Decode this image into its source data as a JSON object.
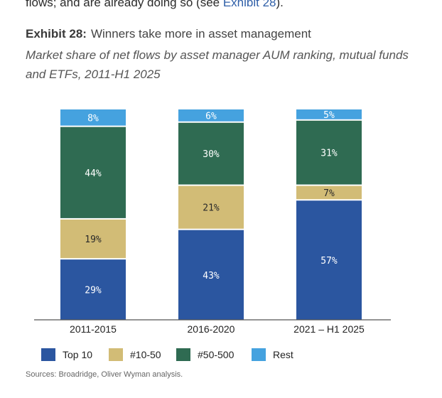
{
  "intro": {
    "text_before": "flows; and are already doing so (see ",
    "link": "Exhibit 28",
    "text_after": ")."
  },
  "exhibit": {
    "label": "Exhibit 28:",
    "title": "Winners take more in asset management",
    "subtitle": "Market share of net flows by asset manager AUM ranking, mutual funds and ETFs, 2011-H1 2025"
  },
  "chart_data": {
    "type": "bar",
    "stacked": true,
    "categories": [
      "2011-2015",
      "2016-2020",
      "2021 – H1 2025"
    ],
    "series": [
      {
        "name": "Top 10",
        "color": "#2b56a0",
        "values": [
          29,
          43,
          57
        ],
        "labels": [
          "29%",
          "43%",
          "57%"
        ]
      },
      {
        "name": "#10-50",
        "color": "#d2bc76",
        "values": [
          19,
          21,
          7
        ],
        "labels": [
          "19%",
          "21%",
          "7%"
        ]
      },
      {
        "name": "#50-500",
        "color": "#2f6b52",
        "values": [
          44,
          30,
          31
        ],
        "labels": [
          "44%",
          "30%",
          "31%"
        ]
      },
      {
        "name": "Rest",
        "color": "#45a2df",
        "values": [
          8,
          6,
          5
        ],
        "labels": [
          "8%",
          "6%",
          "5%"
        ]
      }
    ],
    "ylim": [
      0,
      100
    ],
    "xlabel": "",
    "ylabel": "",
    "grid": false,
    "legend": "bottom-left"
  },
  "source": "Sources: Broadridge, Oliver Wyman analysis."
}
